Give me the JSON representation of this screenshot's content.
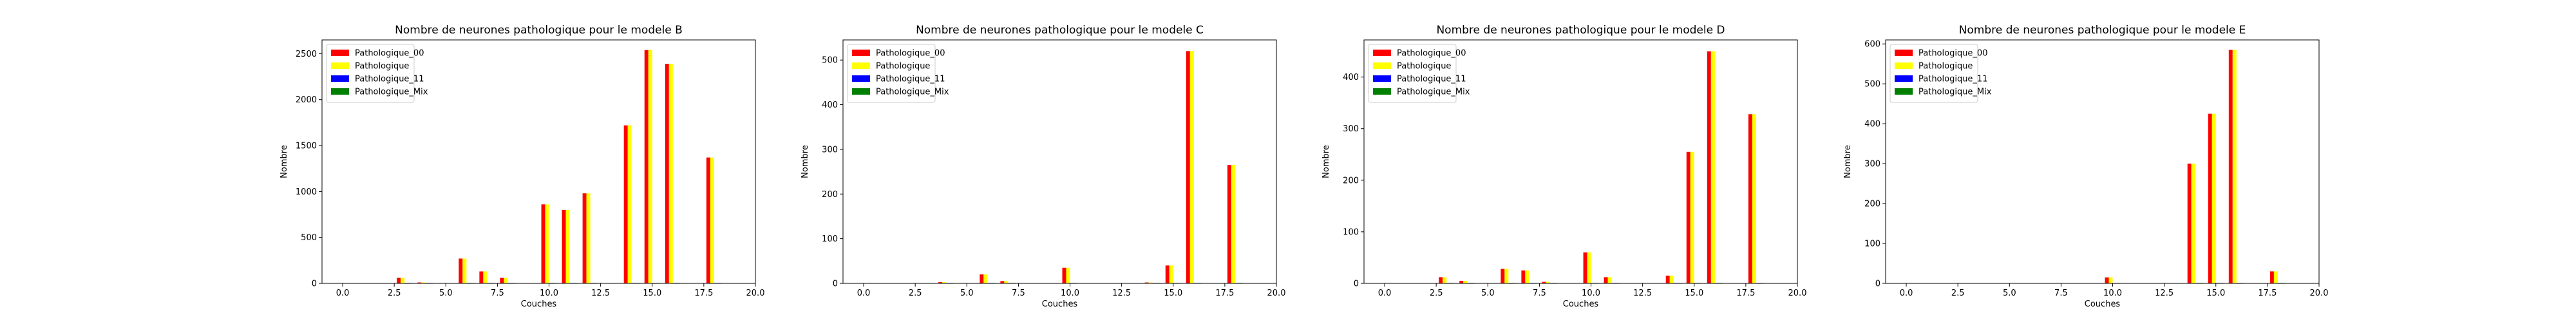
{
  "chart_data": [
    {
      "type": "bar",
      "title": "Nombre de neurones pathologique pour le modele B",
      "xlabel": "Couches",
      "ylabel": "Nombre",
      "xlim": [
        -1,
        20
      ],
      "ylim": [
        0,
        2650
      ],
      "xticks": [
        "0.0",
        "2.5",
        "5.0",
        "7.5",
        "10.0",
        "12.5",
        "15.0",
        "17.5",
        "20.0"
      ],
      "yticks": [
        "0",
        "500",
        "1000",
        "1500",
        "2000",
        "2500"
      ],
      "legend": "upper-left",
      "x": [
        3,
        4,
        6,
        7,
        8,
        10,
        11,
        12,
        14,
        15,
        16,
        18
      ],
      "series": [
        {
          "name": "Pathologique_00",
          "color": "#ff0000",
          "values": [
            60,
            10,
            270,
            130,
            60,
            860,
            800,
            980,
            1720,
            2540,
            2390,
            1370
          ]
        },
        {
          "name": "Pathologique",
          "color": "#ffff00",
          "values": [
            60,
            10,
            270,
            130,
            60,
            860,
            800,
            980,
            1720,
            2540,
            2390,
            1370
          ]
        },
        {
          "name": "Pathologique_11",
          "color": "#0000ff",
          "values": [
            0,
            0,
            0,
            0,
            0,
            0,
            0,
            0,
            0,
            0,
            0,
            0
          ]
        },
        {
          "name": "Pathologique_Mix",
          "color": "#008000",
          "values": [
            0,
            0,
            0,
            0,
            0,
            0,
            0,
            0,
            0,
            0,
            0,
            0
          ]
        }
      ]
    },
    {
      "type": "bar",
      "title": "Nombre de neurones pathologique pour le modele C",
      "xlabel": "Couches",
      "ylabel": "Nombre",
      "xlim": [
        -1,
        20
      ],
      "ylim": [
        0,
        545
      ],
      "xticks": [
        "0.0",
        "2.5",
        "5.0",
        "7.5",
        "10.0",
        "12.5",
        "15.0",
        "17.5",
        "20.0"
      ],
      "yticks": [
        "0",
        "100",
        "200",
        "300",
        "400",
        "500"
      ],
      "legend": "upper-left",
      "x": [
        4,
        6,
        7,
        10,
        14,
        15,
        16,
        18
      ],
      "series": [
        {
          "name": "Pathologique_00",
          "color": "#ff0000",
          "values": [
            3,
            20,
            5,
            35,
            2,
            40,
            520,
            265
          ]
        },
        {
          "name": "Pathologique",
          "color": "#ffff00",
          "values": [
            3,
            20,
            5,
            35,
            2,
            40,
            520,
            265
          ]
        },
        {
          "name": "Pathologique_11",
          "color": "#0000ff",
          "values": [
            0,
            0,
            0,
            0,
            0,
            0,
            0,
            0
          ]
        },
        {
          "name": "Pathologique_Mix",
          "color": "#008000",
          "values": [
            0,
            0,
            0,
            0,
            0,
            0,
            0,
            0
          ]
        }
      ]
    },
    {
      "type": "bar",
      "title": "Nombre de neurones pathologique pour le modele D",
      "xlabel": "Couches",
      "ylabel": "Nombre",
      "xlim": [
        -1,
        20
      ],
      "ylim": [
        0,
        472
      ],
      "xticks": [
        "0.0",
        "2.5",
        "5.0",
        "7.5",
        "10.0",
        "12.5",
        "15.0",
        "17.5",
        "20.0"
      ],
      "yticks": [
        "0",
        "100",
        "200",
        "300",
        "400"
      ],
      "legend": "upper-left",
      "x": [
        3,
        4,
        6,
        7,
        8,
        10,
        11,
        14,
        15,
        16,
        18
      ],
      "series": [
        {
          "name": "Pathologique_00",
          "color": "#ff0000",
          "values": [
            12,
            5,
            28,
            25,
            3,
            60,
            12,
            15,
            255,
            450,
            328
          ]
        },
        {
          "name": "Pathologique",
          "color": "#ffff00",
          "values": [
            12,
            5,
            28,
            25,
            3,
            60,
            12,
            15,
            255,
            450,
            328
          ]
        },
        {
          "name": "Pathologique_11",
          "color": "#0000ff",
          "values": [
            0,
            0,
            0,
            0,
            0,
            0,
            0,
            0,
            0,
            0,
            0
          ]
        },
        {
          "name": "Pathologique_Mix",
          "color": "#008000",
          "values": [
            0,
            0,
            0,
            0,
            0,
            0,
            0,
            0,
            0,
            0,
            0
          ]
        }
      ]
    },
    {
      "type": "bar",
      "title": "Nombre de neurones pathologique pour le modele E",
      "xlabel": "Couches",
      "ylabel": "Nombre",
      "xlim": [
        -1,
        20
      ],
      "ylim": [
        0,
        610
      ],
      "xticks": [
        "0.0",
        "2.5",
        "5.0",
        "7.5",
        "10.0",
        "12.5",
        "15.0",
        "17.5",
        "20.0"
      ],
      "yticks": [
        "0",
        "100",
        "200",
        "300",
        "400",
        "500",
        "600"
      ],
      "legend": "upper-left",
      "x": [
        10,
        14,
        15,
        16,
        18
      ],
      "series": [
        {
          "name": "Pathologique_00",
          "color": "#ff0000",
          "values": [
            15,
            300,
            425,
            585,
            30
          ]
        },
        {
          "name": "Pathologique",
          "color": "#ffff00",
          "values": [
            15,
            300,
            425,
            585,
            30
          ]
        },
        {
          "name": "Pathologique_11",
          "color": "#0000ff",
          "values": [
            0,
            0,
            0,
            0,
            0
          ]
        },
        {
          "name": "Pathologique_Mix",
          "color": "#008000",
          "values": [
            0,
            0,
            0,
            0,
            0
          ]
        }
      ]
    }
  ]
}
